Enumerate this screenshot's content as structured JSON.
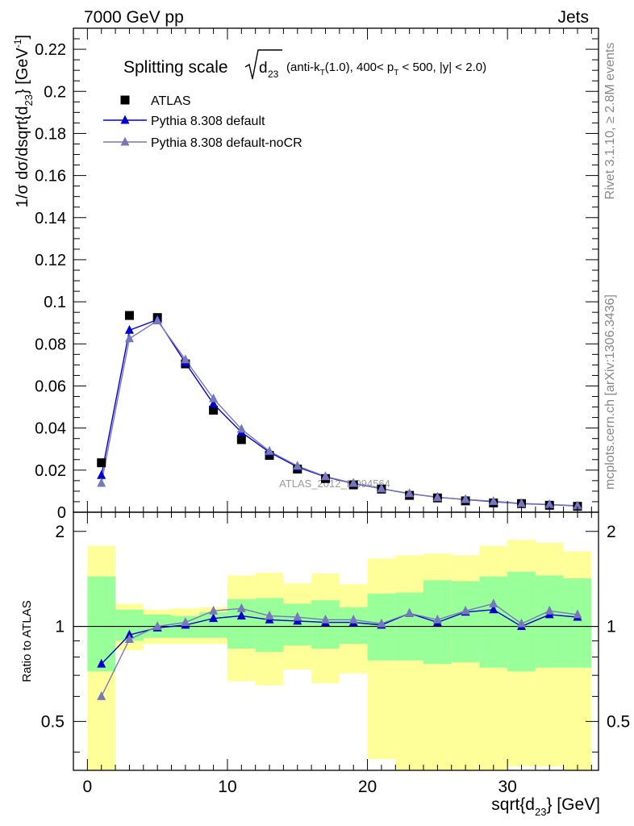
{
  "header": {
    "left": "7000 GeV pp",
    "right": "Jets"
  },
  "side_labels": {
    "rivet": "Rivet 3.1.10, ≥ 2.8M events",
    "mcplots": "mcplots.cern.ch [arXiv:1306.3436]"
  },
  "chart_data": [
    {
      "type": "line",
      "title_main": "Splitting scale",
      "title_sqrt_var": "d",
      "title_sqrt_sub": "23",
      "title_details": "(anti-k_T(1.0), 400< p_T < 500, |y| < 2.0)",
      "watermark": "ATLAS_2012_I1094564",
      "ylabel": "1/σ dσ/dsqrt{d_23} [GeV^-1]",
      "xlim": [
        -1,
        36.5
      ],
      "ylim": [
        0,
        0.23
      ],
      "yticks": [
        "0",
        "0.02",
        "0.04",
        "0.06",
        "0.08",
        "0.1",
        "0.12",
        "0.14",
        "0.16",
        "0.18",
        "0.2",
        "0.22"
      ],
      "legend_position": "top-left",
      "x": [
        1,
        3,
        5,
        7,
        9,
        11,
        13,
        15,
        17,
        19,
        21,
        23,
        25,
        27,
        29,
        31,
        33,
        35
      ],
      "series": [
        {
          "name": "ATLAS",
          "marker": "square",
          "color": "#000000",
          "values": [
            0.0235,
            0.0935,
            0.0925,
            0.0705,
            0.0485,
            0.0345,
            0.027,
            0.0205,
            0.016,
            0.013,
            0.011,
            0.008,
            0.0068,
            0.0054,
            0.0044,
            0.0041,
            0.0033,
            0.0028
          ]
        },
        {
          "name": "Pythia 8.308 default",
          "marker": "triangle",
          "color": "#0000cc",
          "values": [
            0.0175,
            0.0865,
            0.0915,
            0.071,
            0.0515,
            0.038,
            0.0285,
            0.0215,
            0.0168,
            0.0137,
            0.0112,
            0.0088,
            0.0071,
            0.006,
            0.005,
            0.0041,
            0.0036,
            0.003
          ]
        },
        {
          "name": "Pythia 8.308 default-noCR",
          "marker": "triangle",
          "color": "#7777bb",
          "values": [
            0.0138,
            0.0825,
            0.091,
            0.0725,
            0.054,
            0.0395,
            0.029,
            0.022,
            0.017,
            0.0138,
            0.0112,
            0.0089,
            0.007,
            0.0061,
            0.0052,
            0.0042,
            0.0037,
            0.0031
          ]
        }
      ]
    },
    {
      "type": "line",
      "ylabel": "Ratio to ATLAS",
      "xlabel": "sqrt{d_23} [GeV]",
      "xlim": [
        -1,
        36.5
      ],
      "ylim": [
        0.35,
        2.3
      ],
      "yticks": [
        "0.5",
        "1",
        "2"
      ],
      "xticks": [
        "0",
        "10",
        "20",
        "30"
      ],
      "x": [
        1,
        3,
        5,
        7,
        9,
        11,
        13,
        15,
        17,
        19,
        21,
        23,
        25,
        27,
        29,
        31,
        33,
        35
      ],
      "bands": {
        "colors": {
          "inner": "#99ff99",
          "outer": "#ffff99"
        },
        "inner_lo": [
          0.72,
          0.9,
          0.92,
          0.92,
          0.92,
          0.85,
          0.83,
          0.87,
          0.85,
          0.88,
          0.78,
          0.78,
          0.76,
          0.77,
          0.74,
          0.72,
          0.74,
          0.74
        ],
        "inner_hi": [
          1.44,
          1.13,
          1.09,
          1.08,
          1.11,
          1.22,
          1.23,
          1.18,
          1.21,
          1.15,
          1.27,
          1.28,
          1.4,
          1.39,
          1.44,
          1.49,
          1.45,
          1.42
        ],
        "outer_lo": [
          0.33,
          0.84,
          0.88,
          0.88,
          0.88,
          0.67,
          0.65,
          0.73,
          0.66,
          0.71,
          0.38,
          0.35,
          0.34,
          0.35,
          0.35,
          0.36,
          0.36,
          0.34
        ],
        "outer_hi": [
          1.8,
          1.18,
          1.13,
          1.14,
          1.15,
          1.45,
          1.48,
          1.37,
          1.47,
          1.36,
          1.64,
          1.68,
          1.7,
          1.68,
          1.8,
          1.88,
          1.84,
          1.73
        ]
      },
      "series": [
        {
          "name": "Pythia 8.308 default",
          "color": "#0000cc",
          "values": [
            0.76,
            0.94,
            0.99,
            1.01,
            1.06,
            1.08,
            1.05,
            1.04,
            1.03,
            1.03,
            1.01,
            1.1,
            1.03,
            1.11,
            1.13,
            1.0,
            1.09,
            1.07
          ]
        },
        {
          "name": "Pythia 8.308 default-noCR",
          "color": "#7777bb",
          "values": [
            0.6,
            0.91,
            1.0,
            1.03,
            1.12,
            1.14,
            1.08,
            1.07,
            1.05,
            1.05,
            1.02,
            1.1,
            1.05,
            1.12,
            1.18,
            1.02,
            1.12,
            1.09
          ]
        }
      ]
    }
  ]
}
